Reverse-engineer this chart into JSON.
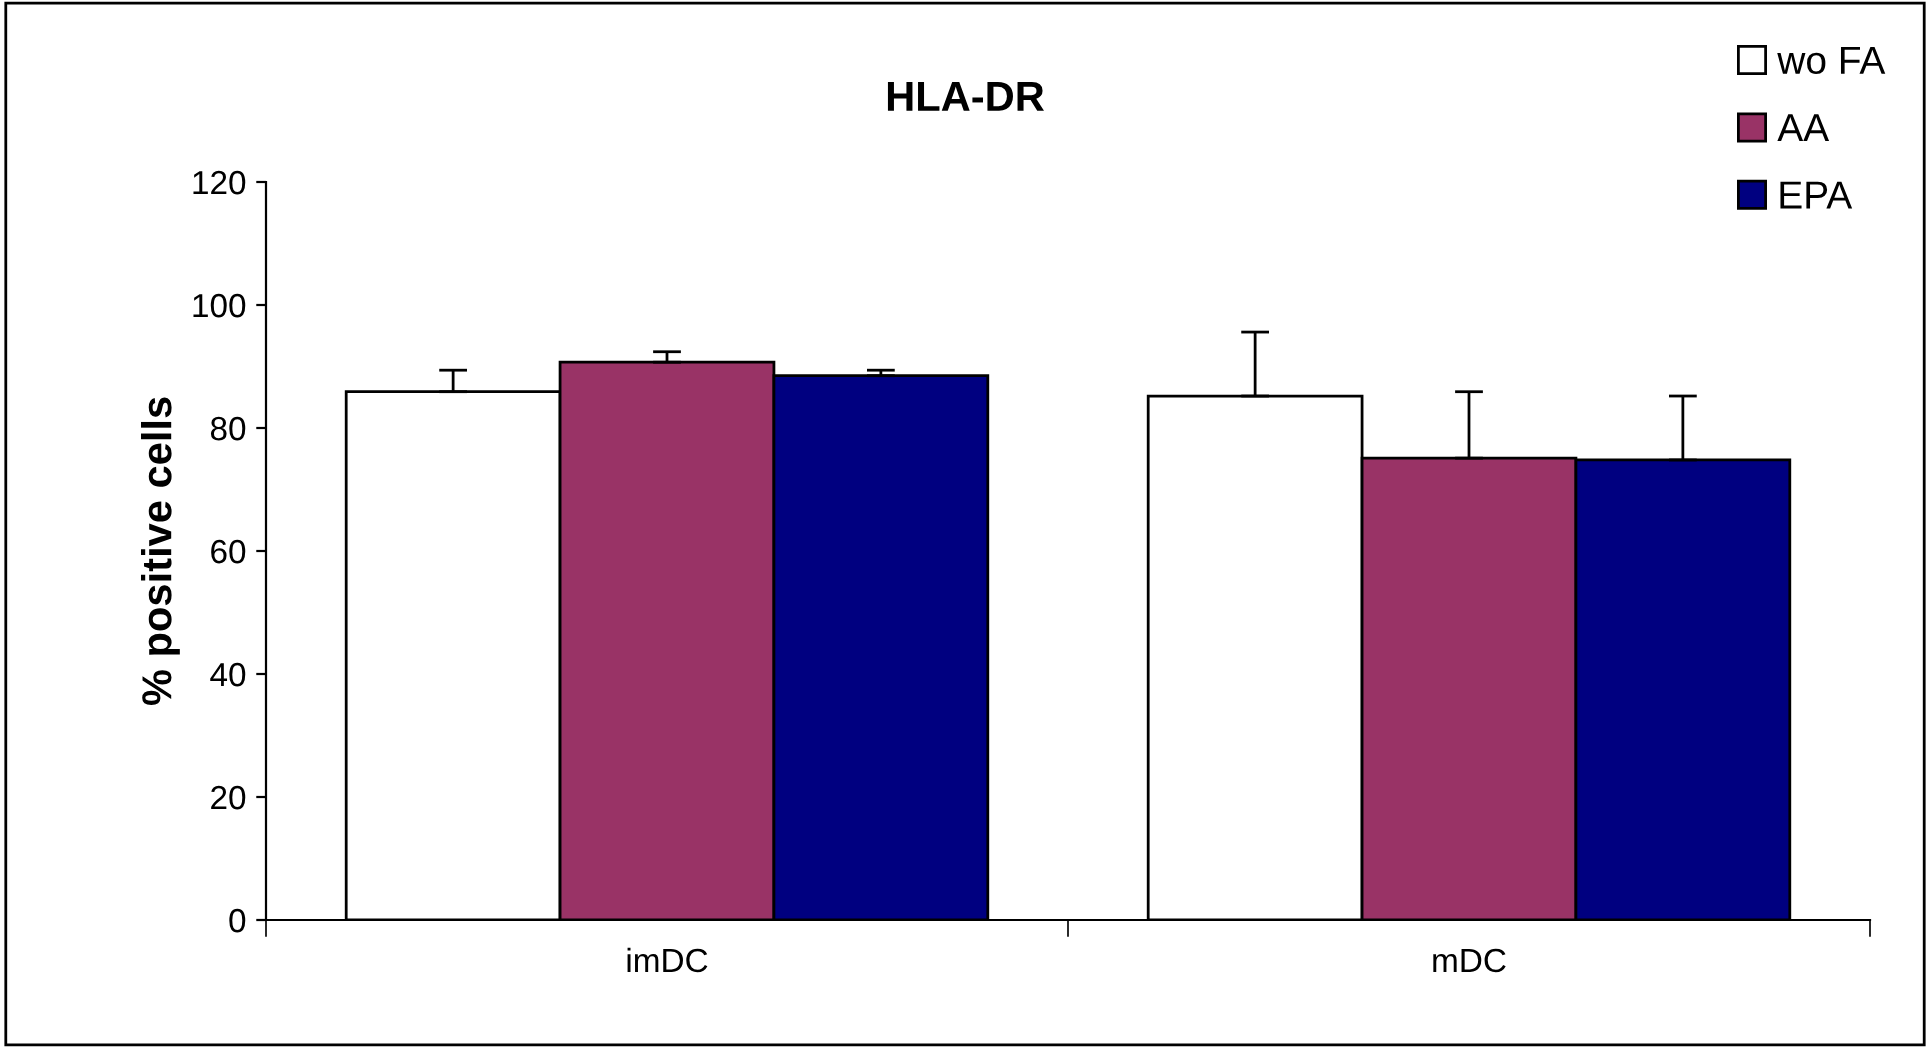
{
  "chart_data": {
    "type": "bar",
    "title": "HLA-DR",
    "ylabel": "% positive cells",
    "categories": [
      "imDC",
      "mDC"
    ],
    "series": [
      {
        "name": "wo FA",
        "color": "#ffffff",
        "values": [
          85.9,
          85.2
        ],
        "errors": [
          [
            85.9,
            89.4
          ],
          [
            85.2,
            95.6
          ]
        ]
      },
      {
        "name": "AA",
        "color": "#993366",
        "values": [
          90.7,
          75.1
        ],
        "errors": [
          [
            90.7,
            92.4
          ],
          [
            75.1,
            85.9
          ]
        ]
      },
      {
        "name": "EPA",
        "color": "#000080",
        "values": [
          88.5,
          74.8
        ],
        "errors": [
          [
            88.5,
            89.4
          ],
          [
            74.8,
            85.2
          ]
        ]
      }
    ],
    "ylim": [
      0,
      120
    ],
    "yticks": [
      0,
      20,
      40,
      60,
      80,
      100,
      120
    ],
    "grid": false,
    "legend": "top right"
  }
}
